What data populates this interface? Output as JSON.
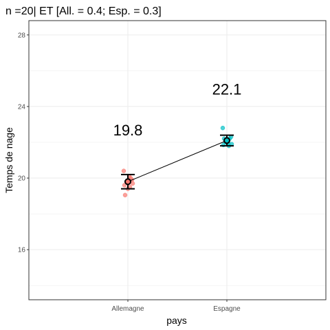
{
  "chart_data": {
    "type": "scatter",
    "title": "n =20| ET [All. = 0.4; Esp. = 0.3]",
    "xlabel": "pays",
    "ylabel": "Temps de nage",
    "categories": [
      "Allemagne",
      "Espagne"
    ],
    "ylim": [
      13.2,
      28.8
    ],
    "yticks": [
      16,
      20,
      24,
      28
    ],
    "grid": true,
    "legend": "none",
    "series": [
      {
        "points": [
          {
            "x": "Allemagne",
            "y": [
              20.4,
              20.0,
              19.8,
              19.7,
              19.6,
              19.5,
              19.4,
              19.9,
              19.05,
              20.1
            ]
          },
          {
            "x": "Espagne",
            "y": [
              22.8,
              22.2,
              22.0,
              21.9,
              21.85,
              21.8,
              22.1,
              22.3,
              22.2,
              21.95
            ]
          }
        ]
      }
    ],
    "summary": [
      {
        "x": "Allemagne",
        "mean": 19.8,
        "lower": 19.4,
        "upper": 20.2,
        "label": "19.8"
      },
      {
        "x": "Espagne",
        "mean": 22.1,
        "lower": 21.8,
        "upper": 22.4,
        "label": "22.1"
      }
    ],
    "colors": {
      "Allemagne": "#F8766D",
      "Espagne": "#00BFC4"
    }
  }
}
